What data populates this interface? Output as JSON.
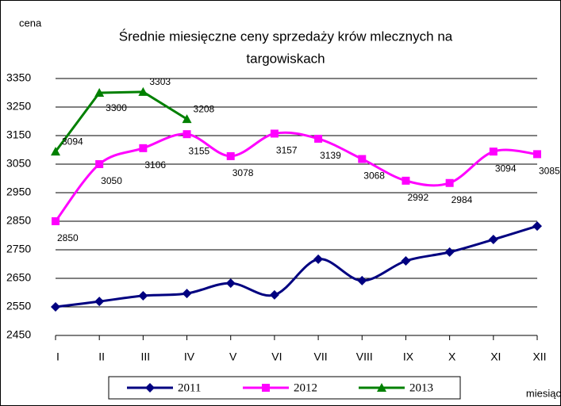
{
  "chart_data": {
    "type": "line",
    "title": [
      "Średnie miesięczne ceny sprzedaży krów mlecznych na",
      "targowiskach"
    ],
    "y_label": "cena",
    "x_label": "miesiąc",
    "categories": [
      "I",
      "II",
      "III",
      "IV",
      "V",
      "VI",
      "VII",
      "VIII",
      "IX",
      "X",
      "XI",
      "XII"
    ],
    "ylim": [
      2450,
      3350
    ],
    "yticks": [
      2450,
      2550,
      2650,
      2750,
      2850,
      2950,
      3050,
      3150,
      3250,
      3350
    ],
    "grid": true,
    "legend": "bottom",
    "series": [
      {
        "name": "2011",
        "color": "#000080",
        "marker": "diamond",
        "smooth": true,
        "values": [
          2550,
          2569,
          2589,
          2597,
          2633,
          2592,
          2717,
          2642,
          2711,
          2742,
          2786,
          2833
        ]
      },
      {
        "name": "2012",
        "color": "#ff00ff",
        "marker": "square",
        "smooth": true,
        "values": [
          2850,
          3050,
          3106,
          3155,
          3078,
          3157,
          3139,
          3068,
          2992,
          2984,
          3094,
          3085
        ]
      },
      {
        "name": "2013",
        "color": "#008000",
        "marker": "triangle",
        "smooth": false,
        "values": [
          3094,
          3300,
          3303,
          3208,
          null,
          null,
          null,
          null,
          null,
          null,
          null,
          null
        ]
      }
    ]
  }
}
